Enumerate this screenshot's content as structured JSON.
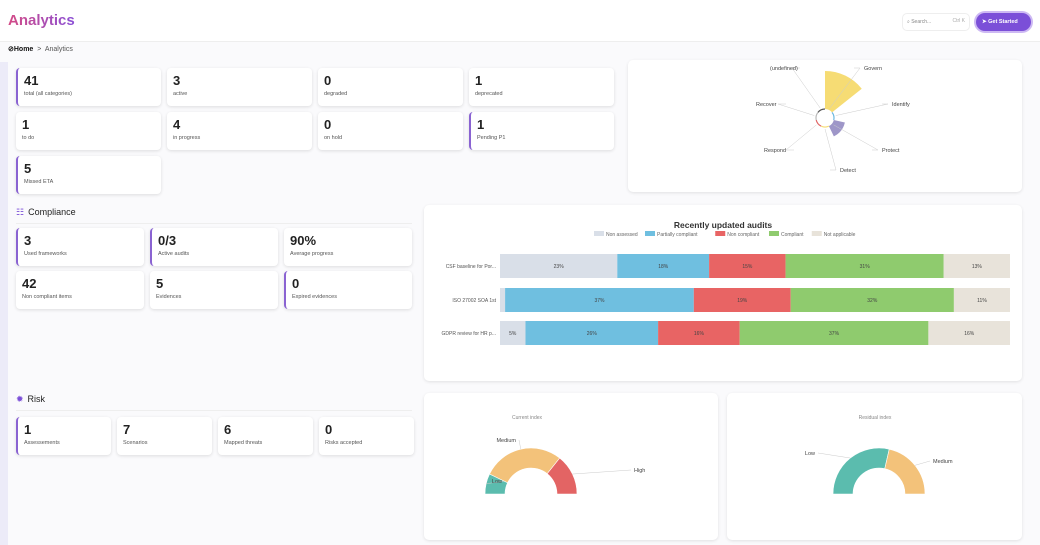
{
  "header": {
    "title": "Analytics",
    "search_placeholder": "Search...",
    "search_shortcut": "Ctrl K",
    "cta": "Get Started"
  },
  "breadcrumb": {
    "home": "Home",
    "separator": ">",
    "current": "Analytics"
  },
  "status_cards": [
    {
      "value": "41",
      "label": "total (all categories)",
      "accent": true
    },
    {
      "value": "3",
      "label": "active",
      "accent": false
    },
    {
      "value": "0",
      "label": "degraded",
      "accent": false
    },
    {
      "value": "1",
      "label": "deprecated",
      "accent": false
    },
    {
      "value": "1",
      "label": "to do",
      "accent": false
    },
    {
      "value": "4",
      "label": "in progress",
      "accent": false
    },
    {
      "value": "0",
      "label": "on hold",
      "accent": false
    },
    {
      "value": "1",
      "label": "Pending P1",
      "accent": true
    },
    {
      "value": "5",
      "label": "Missed ETA",
      "accent": true
    }
  ],
  "compliance": {
    "title": "Compliance",
    "cards": [
      {
        "value": "3",
        "label": "Used frameworks",
        "accent": true
      },
      {
        "value": "0/3",
        "label": "Active audits",
        "accent": true
      },
      {
        "value": "90%",
        "label": "Average progress",
        "accent": false
      },
      {
        "value": "42",
        "label": "Non compliant items",
        "accent": false
      },
      {
        "value": "5",
        "label": "Evidences",
        "accent": false
      },
      {
        "value": "0",
        "label": "Expired evidences",
        "accent": true
      }
    ]
  },
  "risk": {
    "title": "Risk",
    "cards": [
      {
        "value": "1",
        "label": "Assessements",
        "accent": true
      },
      {
        "value": "7",
        "label": "Scenarios",
        "accent": false
      },
      {
        "value": "6",
        "label": "Mapped threats",
        "accent": false
      },
      {
        "value": "0",
        "label": "Risks accepted",
        "accent": false
      }
    ]
  },
  "chart_data": [
    {
      "type": "polar-area",
      "categories": [
        "(undefined)",
        "Govern",
        "Identify",
        "Protect",
        "Detect",
        "Respond",
        "Recover"
      ],
      "values": [
        0,
        10,
        0,
        3,
        0,
        0,
        0
      ],
      "colors": [
        "#555555",
        "#f6dc74",
        "#6bb8e0",
        "#9e96c8",
        "#f6dc74",
        "#e06666",
        "#bbbbbb"
      ]
    },
    {
      "type": "bar",
      "stacked": true,
      "horizontal": true,
      "title": "Recently updated audits",
      "legend": "top",
      "categories": [
        "CSF baseline for Por...",
        "ISO 27002 SOA 1st",
        "GDPR review for HR p..."
      ],
      "series": [
        {
          "name": "Non assessed",
          "color": "#d9dfe8",
          "values": [
            23,
            1,
            5
          ]
        },
        {
          "name": "Partially compliant",
          "color": "#6fbfe0",
          "values": [
            18,
            37,
            26
          ]
        },
        {
          "name": "Non compliant",
          "color": "#e86464",
          "values": [
            15,
            19,
            16
          ]
        },
        {
          "name": "Compliant",
          "color": "#8fcb6e",
          "values": [
            31,
            32,
            37
          ]
        },
        {
          "name": "Not applicable",
          "color": "#e8e3da",
          "values": [
            13,
            11,
            16
          ]
        }
      ]
    },
    {
      "type": "pie",
      "half": true,
      "title": "Current index",
      "categories": [
        "Low",
        "Medium",
        "High"
      ],
      "values": [
        1,
        4,
        2
      ],
      "colors": [
        "#5bbcae",
        "#f3c27a",
        "#e36464"
      ]
    },
    {
      "type": "pie",
      "half": true,
      "title": "Residual index",
      "categories": [
        "Low",
        "Medium"
      ],
      "values": [
        4,
        3
      ],
      "colors": [
        "#5bbcae",
        "#f3c27a"
      ]
    }
  ]
}
